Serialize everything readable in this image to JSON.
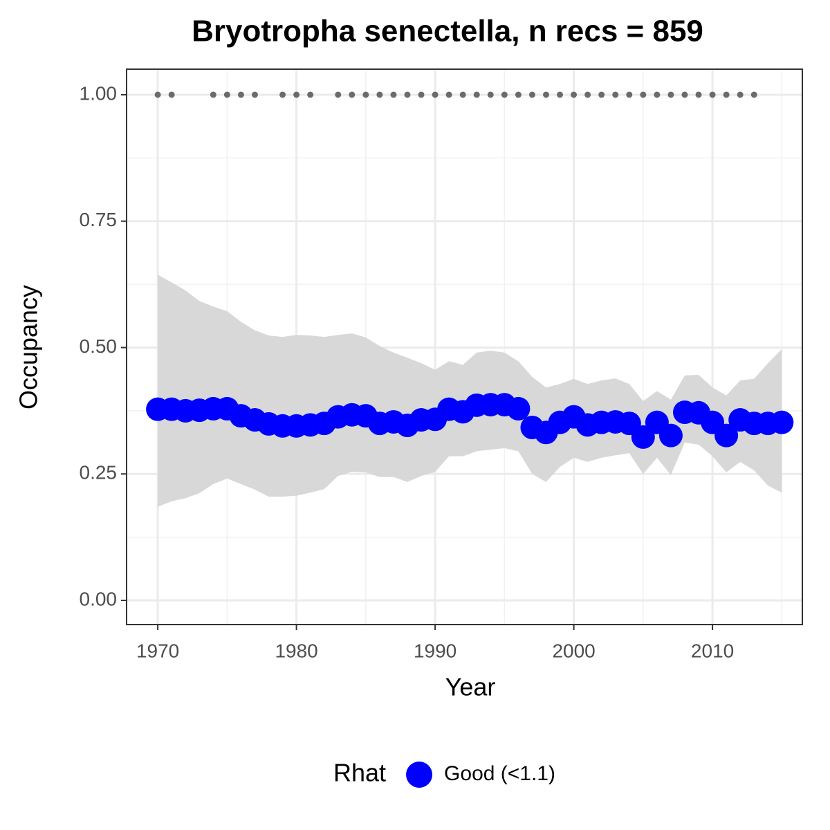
{
  "chart_data": {
    "type": "scatter",
    "title": "Bryotropha senectella, n recs = 859",
    "xlabel": "Year",
    "ylabel": "Occupancy",
    "x": [
      1970,
      1971,
      1972,
      1973,
      1974,
      1975,
      1976,
      1977,
      1978,
      1979,
      1980,
      1981,
      1982,
      1983,
      1984,
      1985,
      1986,
      1987,
      1988,
      1989,
      1990,
      1991,
      1992,
      1993,
      1994,
      1995,
      1996,
      1997,
      1998,
      1999,
      2000,
      2001,
      2002,
      2003,
      2004,
      2005,
      2006,
      2007,
      2008,
      2009,
      2010,
      2011,
      2012,
      2013,
      2014,
      2015
    ],
    "series": [
      {
        "name": "Good (<1.1)",
        "color": "#0000ff",
        "values": [
          0.378,
          0.378,
          0.375,
          0.376,
          0.379,
          0.379,
          0.365,
          0.357,
          0.349,
          0.345,
          0.345,
          0.347,
          0.35,
          0.363,
          0.367,
          0.365,
          0.35,
          0.353,
          0.346,
          0.357,
          0.358,
          0.378,
          0.373,
          0.386,
          0.387,
          0.387,
          0.379,
          0.342,
          0.332,
          0.352,
          0.363,
          0.347,
          0.352,
          0.353,
          0.35,
          0.323,
          0.352,
          0.326,
          0.372,
          0.371,
          0.352,
          0.326,
          0.357,
          0.35,
          0.35,
          0.352
        ]
      }
    ],
    "ribbon": {
      "color": "#d6d6d6",
      "upper": [
        0.644,
        0.629,
        0.613,
        0.592,
        0.581,
        0.572,
        0.551,
        0.534,
        0.524,
        0.521,
        0.525,
        0.524,
        0.521,
        0.525,
        0.528,
        0.52,
        0.503,
        0.49,
        0.48,
        0.469,
        0.456,
        0.473,
        0.466,
        0.49,
        0.494,
        0.49,
        0.473,
        0.442,
        0.421,
        0.428,
        0.438,
        0.428,
        0.435,
        0.439,
        0.428,
        0.394,
        0.414,
        0.397,
        0.445,
        0.446,
        0.421,
        0.405,
        0.435,
        0.438,
        0.469,
        0.497
      ],
      "lower": [
        0.185,
        0.196,
        0.202,
        0.212,
        0.23,
        0.241,
        0.23,
        0.219,
        0.205,
        0.205,
        0.207,
        0.213,
        0.22,
        0.246,
        0.254,
        0.253,
        0.244,
        0.244,
        0.234,
        0.246,
        0.254,
        0.285,
        0.285,
        0.295,
        0.298,
        0.301,
        0.295,
        0.25,
        0.234,
        0.264,
        0.282,
        0.274,
        0.282,
        0.287,
        0.291,
        0.25,
        0.282,
        0.248,
        0.312,
        0.308,
        0.285,
        0.253,
        0.274,
        0.257,
        0.227,
        0.213
      ]
    },
    "records": {
      "color": "#6b6b6b",
      "x": [
        1970,
        1971,
        1974,
        1975,
        1976,
        1977,
        1979,
        1980,
        1981,
        1983,
        1984,
        1985,
        1986,
        1987,
        1988,
        1989,
        1990,
        1991,
        1992,
        1993,
        1994,
        1995,
        1996,
        1997,
        1998,
        1999,
        2000,
        2001,
        2002,
        2003,
        2004,
        2005,
        2006,
        2007,
        2008,
        2009,
        2010,
        2011,
        2012,
        2013
      ],
      "values": [
        1,
        1,
        1,
        1,
        1,
        1,
        1,
        1,
        1,
        1,
        1,
        1,
        1,
        1,
        1,
        1,
        1,
        1,
        1,
        1,
        1,
        1,
        1,
        1,
        1,
        1,
        1,
        1,
        1,
        1,
        1,
        1,
        1,
        1,
        1,
        1,
        1,
        1,
        1,
        1
      ]
    },
    "xlim": [
      1967.75,
      2016.48
    ],
    "ylim": [
      -0.0479,
      1.0506
    ],
    "xticks": [
      1970,
      1980,
      1990,
      2000,
      2010
    ],
    "x_minor_ticks": [
      1975,
      1985,
      1995,
      2005,
      2015
    ],
    "yticks": [
      {
        "value": 0,
        "label": "0.00"
      },
      {
        "value": 0.25,
        "label": "0.25"
      },
      {
        "value": 0.5,
        "label": "0.50"
      },
      {
        "value": 0.75,
        "label": "0.75"
      },
      {
        "value": 1,
        "label": "1.00"
      }
    ],
    "y_minor_ticks": [
      0.125,
      0.375,
      0.625,
      0.875
    ],
    "grid": true,
    "legend": {
      "title": "Rhat",
      "position": "bottom"
    }
  }
}
